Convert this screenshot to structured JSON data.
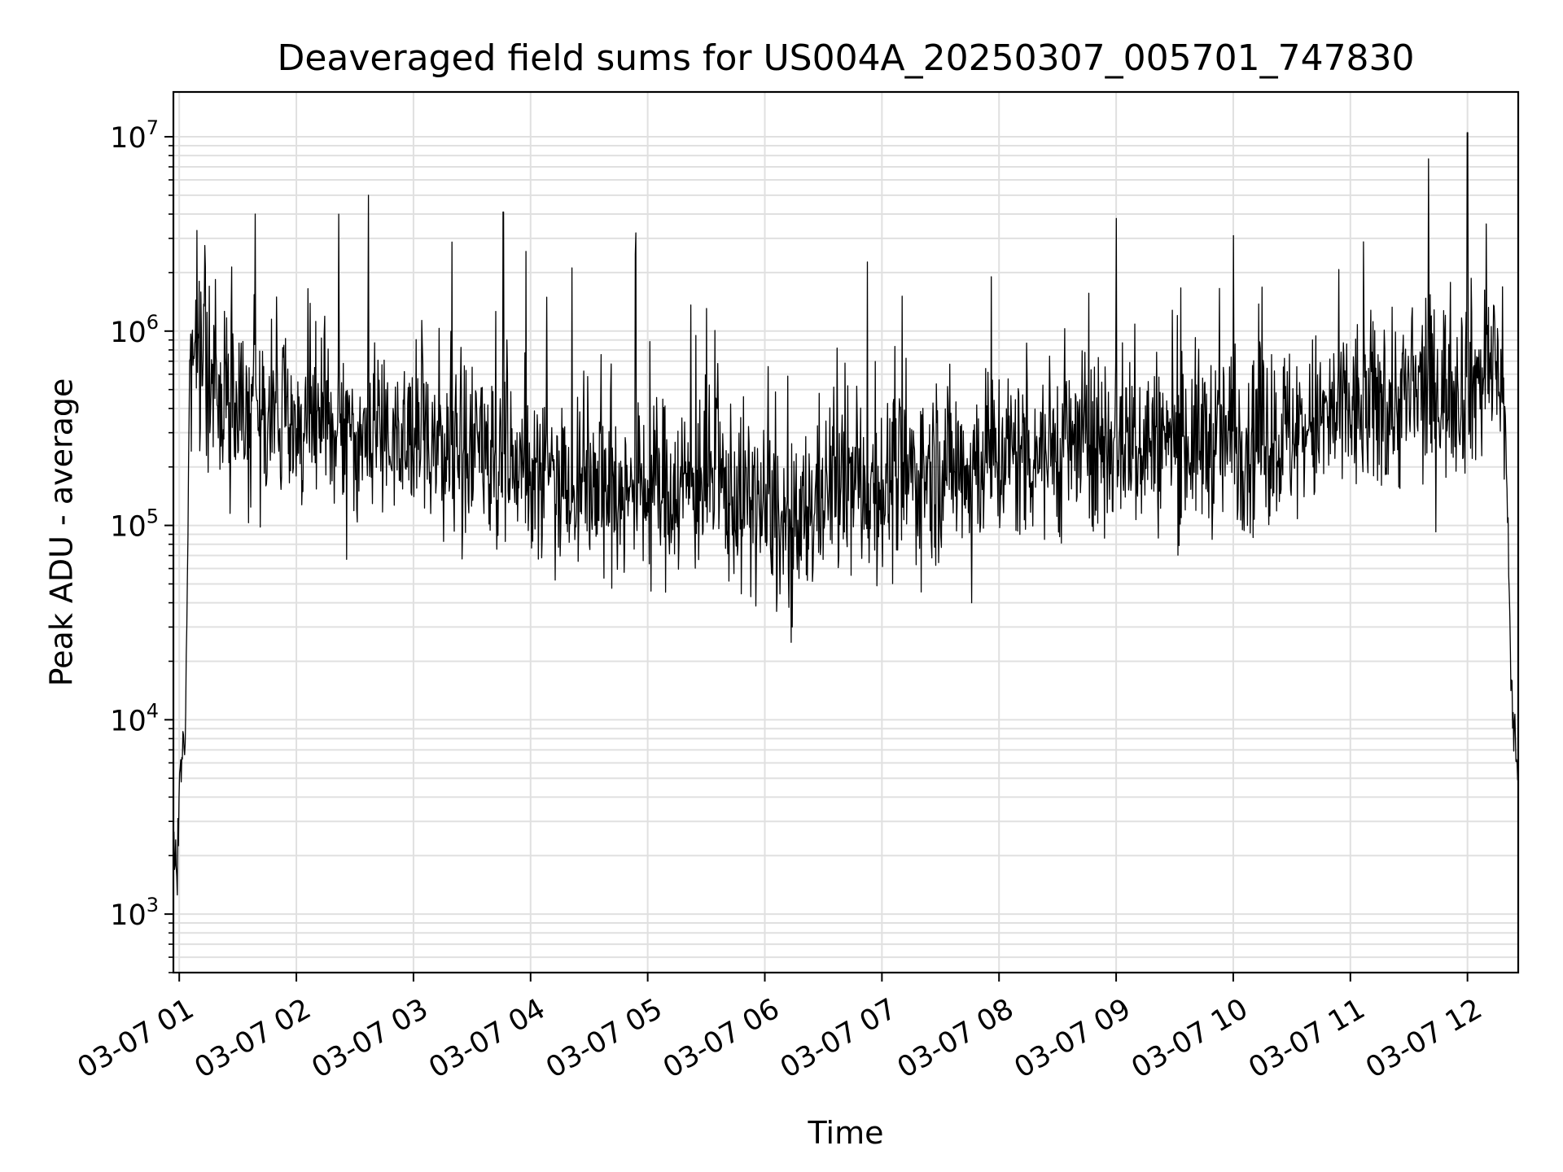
{
  "chart_data": {
    "type": "line",
    "title": "Deaveraged field sums for US004A_20250307_005701_747830",
    "xlabel": "Time",
    "ylabel": "Peak ADU - average",
    "yscale": "log",
    "ylim": [
      500,
      17000000
    ],
    "xlim": [
      "2025-03-07 00:57",
      "2025-03-07 12:26"
    ],
    "grid": true,
    "line_color": "#000000",
    "grid_color": "#e0e0e0",
    "x_ticks": [
      {
        "value": "2025-03-07 01:00",
        "label": "03-07 01"
      },
      {
        "value": "2025-03-07 02:00",
        "label": "03-07 02"
      },
      {
        "value": "2025-03-07 03:00",
        "label": "03-07 03"
      },
      {
        "value": "2025-03-07 04:00",
        "label": "03-07 04"
      },
      {
        "value": "2025-03-07 05:00",
        "label": "03-07 05"
      },
      {
        "value": "2025-03-07 06:00",
        "label": "03-07 06"
      },
      {
        "value": "2025-03-07 07:00",
        "label": "03-07 07"
      },
      {
        "value": "2025-03-07 08:00",
        "label": "03-07 08"
      },
      {
        "value": "2025-03-07 09:00",
        "label": "03-07 09"
      },
      {
        "value": "2025-03-07 10:00",
        "label": "03-07 10"
      },
      {
        "value": "2025-03-07 11:00",
        "label": "03-07 11"
      },
      {
        "value": "2025-03-07 12:00",
        "label": "03-07 12"
      }
    ],
    "y_ticks": [
      {
        "value": 1000,
        "base": "10",
        "exp": "3"
      },
      {
        "value": 10000,
        "base": "10",
        "exp": "4"
      },
      {
        "value": 100000,
        "base": "10",
        "exp": "5"
      },
      {
        "value": 1000000,
        "base": "10",
        "exp": "6"
      },
      {
        "value": 10000000,
        "base": "10",
        "exp": "7"
      }
    ],
    "series": [
      {
        "x": [
          "2025-03-07 00:57",
          "2025-03-07 00:58",
          "2025-03-07 00:59",
          "2025-03-07 01:00",
          "2025-03-07 01:01",
          "2025-03-07 01:02",
          "2025-03-07 01:03",
          "2025-03-07 01:04",
          "2025-03-07 01:05",
          "2025-03-07 01:06",
          "2025-03-07 01:08",
          "2025-03-07 01:10",
          "2025-03-07 01:12",
          "2025-03-07 01:15",
          "2025-03-07 01:20",
          "2025-03-07 01:30",
          "2025-03-07 01:40",
          "2025-03-07 01:50",
          "2025-03-07 02:00",
          "2025-03-07 02:20",
          "2025-03-07 02:40",
          "2025-03-07 03:00",
          "2025-03-07 03:30",
          "2025-03-07 04:00",
          "2025-03-07 04:30",
          "2025-03-07 05:00",
          "2025-03-07 05:30",
          "2025-03-07 06:00",
          "2025-03-07 06:15",
          "2025-03-07 06:30",
          "2025-03-07 07:00",
          "2025-03-07 07:30",
          "2025-03-07 08:00",
          "2025-03-07 08:30",
          "2025-03-07 09:00",
          "2025-03-07 09:30",
          "2025-03-07 10:00",
          "2025-03-07 10:30",
          "2025-03-07 11:00",
          "2025-03-07 11:30",
          "2025-03-07 12:00",
          "2025-03-07 12:10",
          "2025-03-07 12:15",
          "2025-03-07 12:18",
          "2025-03-07 12:20",
          "2025-03-07 12:22",
          "2025-03-07 12:24",
          "2025-03-07 12:26"
        ],
        "y": [
          1800,
          2200,
          1400,
          5000,
          6000,
          8500,
          7000,
          40000,
          300000,
          700000,
          800000,
          850000,
          700000,
          500000,
          450000,
          450000,
          400000,
          350000,
          330000,
          300000,
          280000,
          300000,
          220000,
          200000,
          170000,
          150000,
          170000,
          120000,
          80000,
          160000,
          160000,
          200000,
          230000,
          250000,
          280000,
          270000,
          280000,
          300000,
          380000,
          450000,
          550000,
          600000,
          650000,
          700000,
          200000,
          20000,
          8000,
          6000
        ]
      }
    ],
    "spikes": [
      {
        "x": "2025-03-07 01:39",
        "y": 4000000
      },
      {
        "x": "2025-03-07 02:37",
        "y": 5000000
      },
      {
        "x": "2025-03-07 03:46",
        "y": 4100000
      },
      {
        "x": "2025-03-07 04:54",
        "y": 3200000
      },
      {
        "x": "2025-03-07 09:00",
        "y": 3800000
      },
      {
        "x": "2025-03-07 10:00",
        "y": 3100000
      },
      {
        "x": "2025-03-07 11:40",
        "y": 7700000
      },
      {
        "x": "2025-03-07 12:00",
        "y": 10500000
      },
      {
        "x": "2025-03-07 06:14",
        "y": 30000
      },
      {
        "x": "2025-03-07 07:46",
        "y": 40000
      }
    ]
  }
}
